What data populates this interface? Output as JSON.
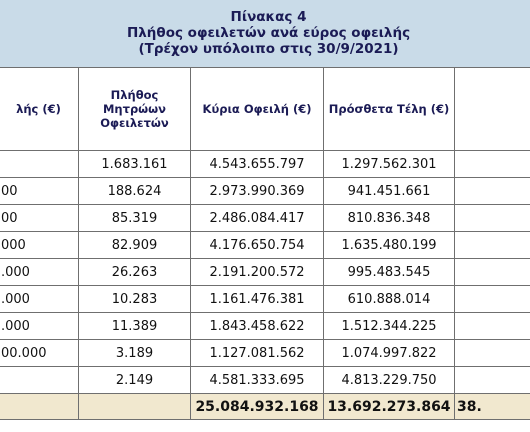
{
  "title": {
    "line1": "Πίνακας 4",
    "line2": "Πλήθος οφειλετών ανά εύρος οφειλής",
    "line3": "(Τρέχον υπόλοιπο στις 30/9/2021)"
  },
  "columns": {
    "range": "λής (€)",
    "debtors": "Πλήθος Μητρώων Οφειλετών",
    "principal": "Κύρια Οφειλή (€)",
    "fees": "Πρόσθετα Τέλη (€)",
    "last": ""
  },
  "rows": [
    {
      "range": "",
      "debtors": "1.683.161",
      "principal": "4.543.655.797",
      "fees": "1.297.562.301"
    },
    {
      "range": "00",
      "debtors": "188.624",
      "principal": "2.973.990.369",
      "fees": "941.451.661"
    },
    {
      "range": "00",
      "debtors": "85.319",
      "principal": "2.486.084.417",
      "fees": "810.836.348"
    },
    {
      "range": "000",
      "debtors": "82.909",
      "principal": "4.176.650.754",
      "fees": "1.635.480.199"
    },
    {
      "range": ".000",
      "debtors": "26.263",
      "principal": "2.191.200.572",
      "fees": "995.483.545"
    },
    {
      "range": ".000",
      "debtors": "10.283",
      "principal": "1.161.476.381",
      "fees": "610.888.014"
    },
    {
      "range": ".000",
      "debtors": "11.389",
      "principal": "1.843.458.622",
      "fees": "1.512.344.225"
    },
    {
      "range": "00.000",
      "debtors": "3.189",
      "principal": "1.127.081.562",
      "fees": "1.074.997.822"
    },
    {
      "range": "",
      "debtors": "2.149",
      "principal": "4.581.333.695",
      "fees": "4.813.229.750"
    }
  ],
  "total": {
    "range": "",
    "debtors": "",
    "principal": "25.084.932.168",
    "fees": "13.692.273.864",
    "last": "38."
  }
}
